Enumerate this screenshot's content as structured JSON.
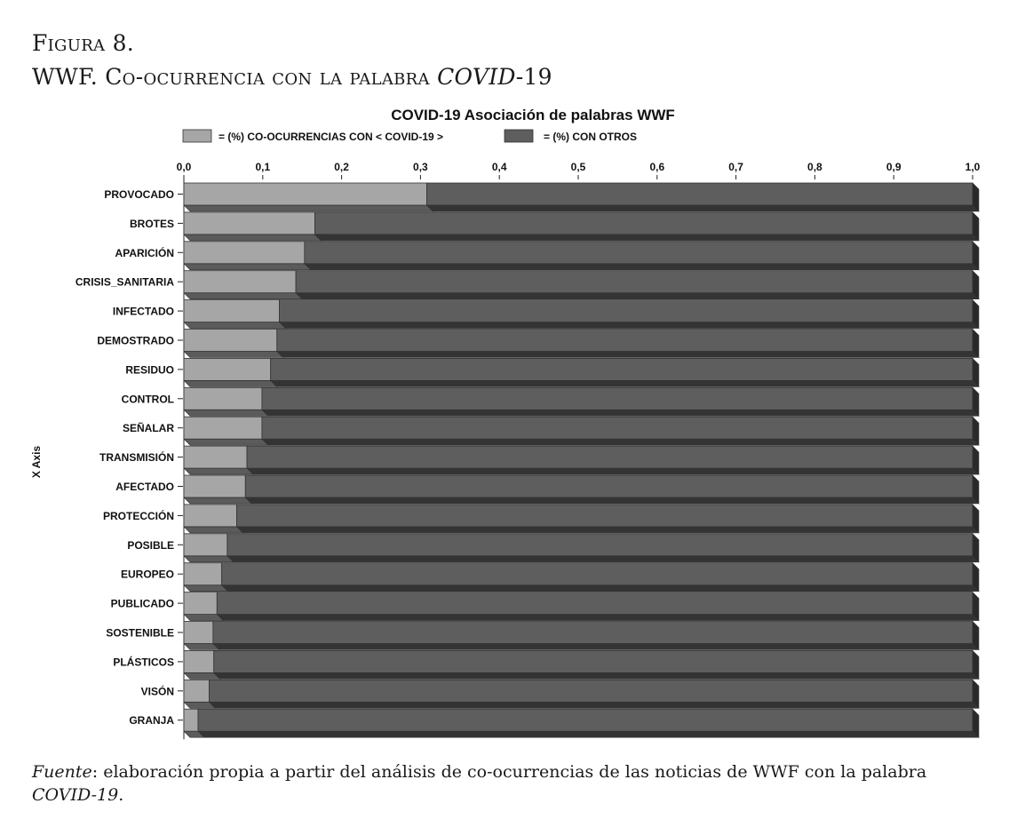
{
  "figure": {
    "label": "Figura 8.",
    "title_plain": "WWF. Co-ocurrencia con la palabra ",
    "title_italic": "COVID",
    "title_end": "-19"
  },
  "footer": {
    "source_label": "Fuente",
    "source_text": ": elaboración propia a partir del análisis de co-ocurrencias de las noticias de WWF con la palabra ",
    "source_italic": "COVID-19",
    "source_end": "."
  },
  "chart_data": {
    "type": "bar",
    "orientation": "horizontal",
    "stacked": true,
    "title": "COVID-19 Asociación de palabras WWF",
    "ylabel": "X Axis",
    "xlim": [
      0,
      1
    ],
    "xticks": [
      "0,0",
      "0,1",
      "0,2",
      "0,3",
      "0,4",
      "0,5",
      "0,6",
      "0,7",
      "0,8",
      "0,9",
      "1,0"
    ],
    "categories": [
      "PROVOCADO",
      "BROTES",
      "APARICIÓN",
      "CRISIS_SANITARIA",
      "INFECTADO",
      "DEMOSTRADO",
      "RESIDUO",
      "CONTROL",
      "SEÑALAR",
      "TRANSMISIÓN",
      "AFECTADO",
      "PROTECCIÓN",
      "POSIBLE",
      "EUROPEO",
      "PUBLICADO",
      "SOSTENIBLE",
      "PLÁSTICOS",
      "VISÓN",
      "GRANJA"
    ],
    "series": [
      {
        "name": "= (%) CO-OCURRENCIAS CON  < COVID-19 >",
        "color": "#a6a6a6",
        "values": [
          0.308,
          0.166,
          0.153,
          0.142,
          0.121,
          0.118,
          0.11,
          0.099,
          0.099,
          0.08,
          0.078,
          0.067,
          0.055,
          0.048,
          0.042,
          0.037,
          0.038,
          0.032,
          0.018
        ]
      },
      {
        "name": "= (%)  CON OTROS",
        "color": "#5e5e5e",
        "values": [
          0.692,
          0.834,
          0.847,
          0.858,
          0.879,
          0.882,
          0.89,
          0.901,
          0.901,
          0.92,
          0.922,
          0.933,
          0.945,
          0.952,
          0.958,
          0.963,
          0.962,
          0.968,
          0.982
        ]
      }
    ],
    "legend": "top"
  }
}
